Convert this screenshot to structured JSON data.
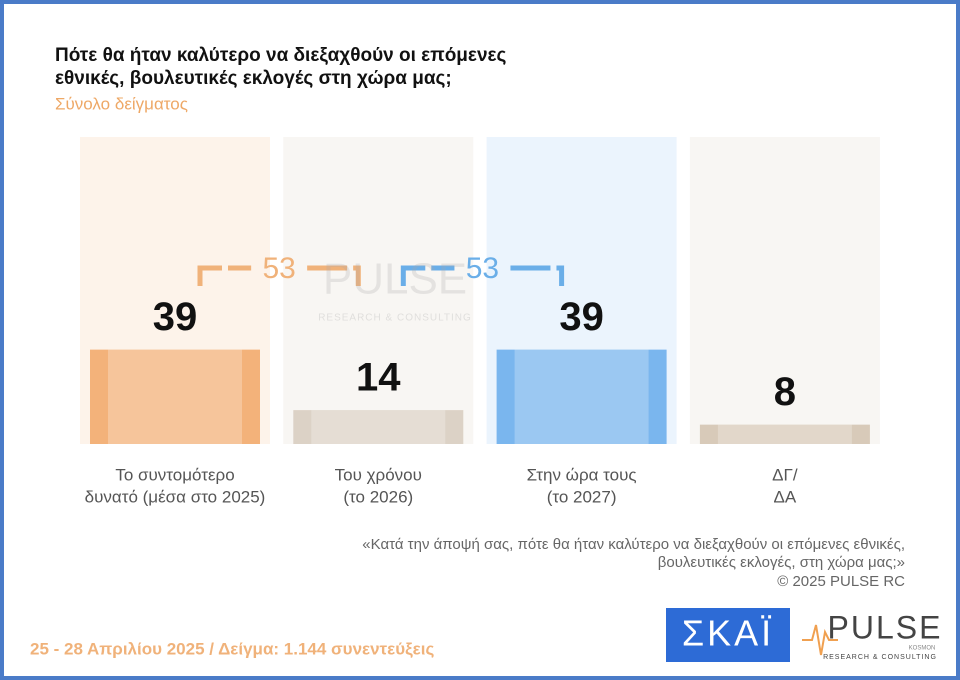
{
  "chart_data": {
    "type": "bar",
    "title": [
      "Πότε θα ήταν καλύτερο να διεξαχθούν οι επόμενες",
      "εθνικές, βουλευτικές εκλογές στη χώρα μας;"
    ],
    "subtitle": "Σύνολο δείγματος",
    "categories": [
      [
        "Το συντομότερο",
        "δυνατό (μέσα στο 2025)"
      ],
      [
        "Του χρόνου",
        "(το 2026)"
      ],
      [
        "Στην ώρα τους",
        "(το 2027)"
      ],
      [
        "ΔΓ/",
        "ΔΑ"
      ]
    ],
    "values": [
      39,
      14,
      39,
      8
    ],
    "colors": [
      "#f3b27a",
      "#dcd2c6",
      "#7ab6ee",
      "#d8cab9"
    ],
    "panel_colors": [
      "#fdf3ea",
      "#f8f6f3",
      "#ebf4fd",
      "#f8f6f3"
    ],
    "annotations": [
      {
        "value": 53,
        "color": "#f0b27a"
      },
      {
        "value": 53,
        "color": "#6aaee8"
      }
    ],
    "footnote": [
      "«Κατά την άποψή σας, πότε θα ήταν καλύτερο να διεξαχθούν οι επόμενες εθνικές,",
      "βουλευτικές εκλογές, στη χώρα μας;»",
      "©  2025  PULSE RC"
    ],
    "footer": "25 - 28 Απριλίου 2025  /  Δείγμα:  1.144 συνεντεύξεις",
    "logos": {
      "skai": "ΣΚΑΪ",
      "pulse": "PULSE",
      "pulse_tagline": "RESEARCH & CONSULTING",
      "pulse_small": "KOSMON"
    }
  }
}
